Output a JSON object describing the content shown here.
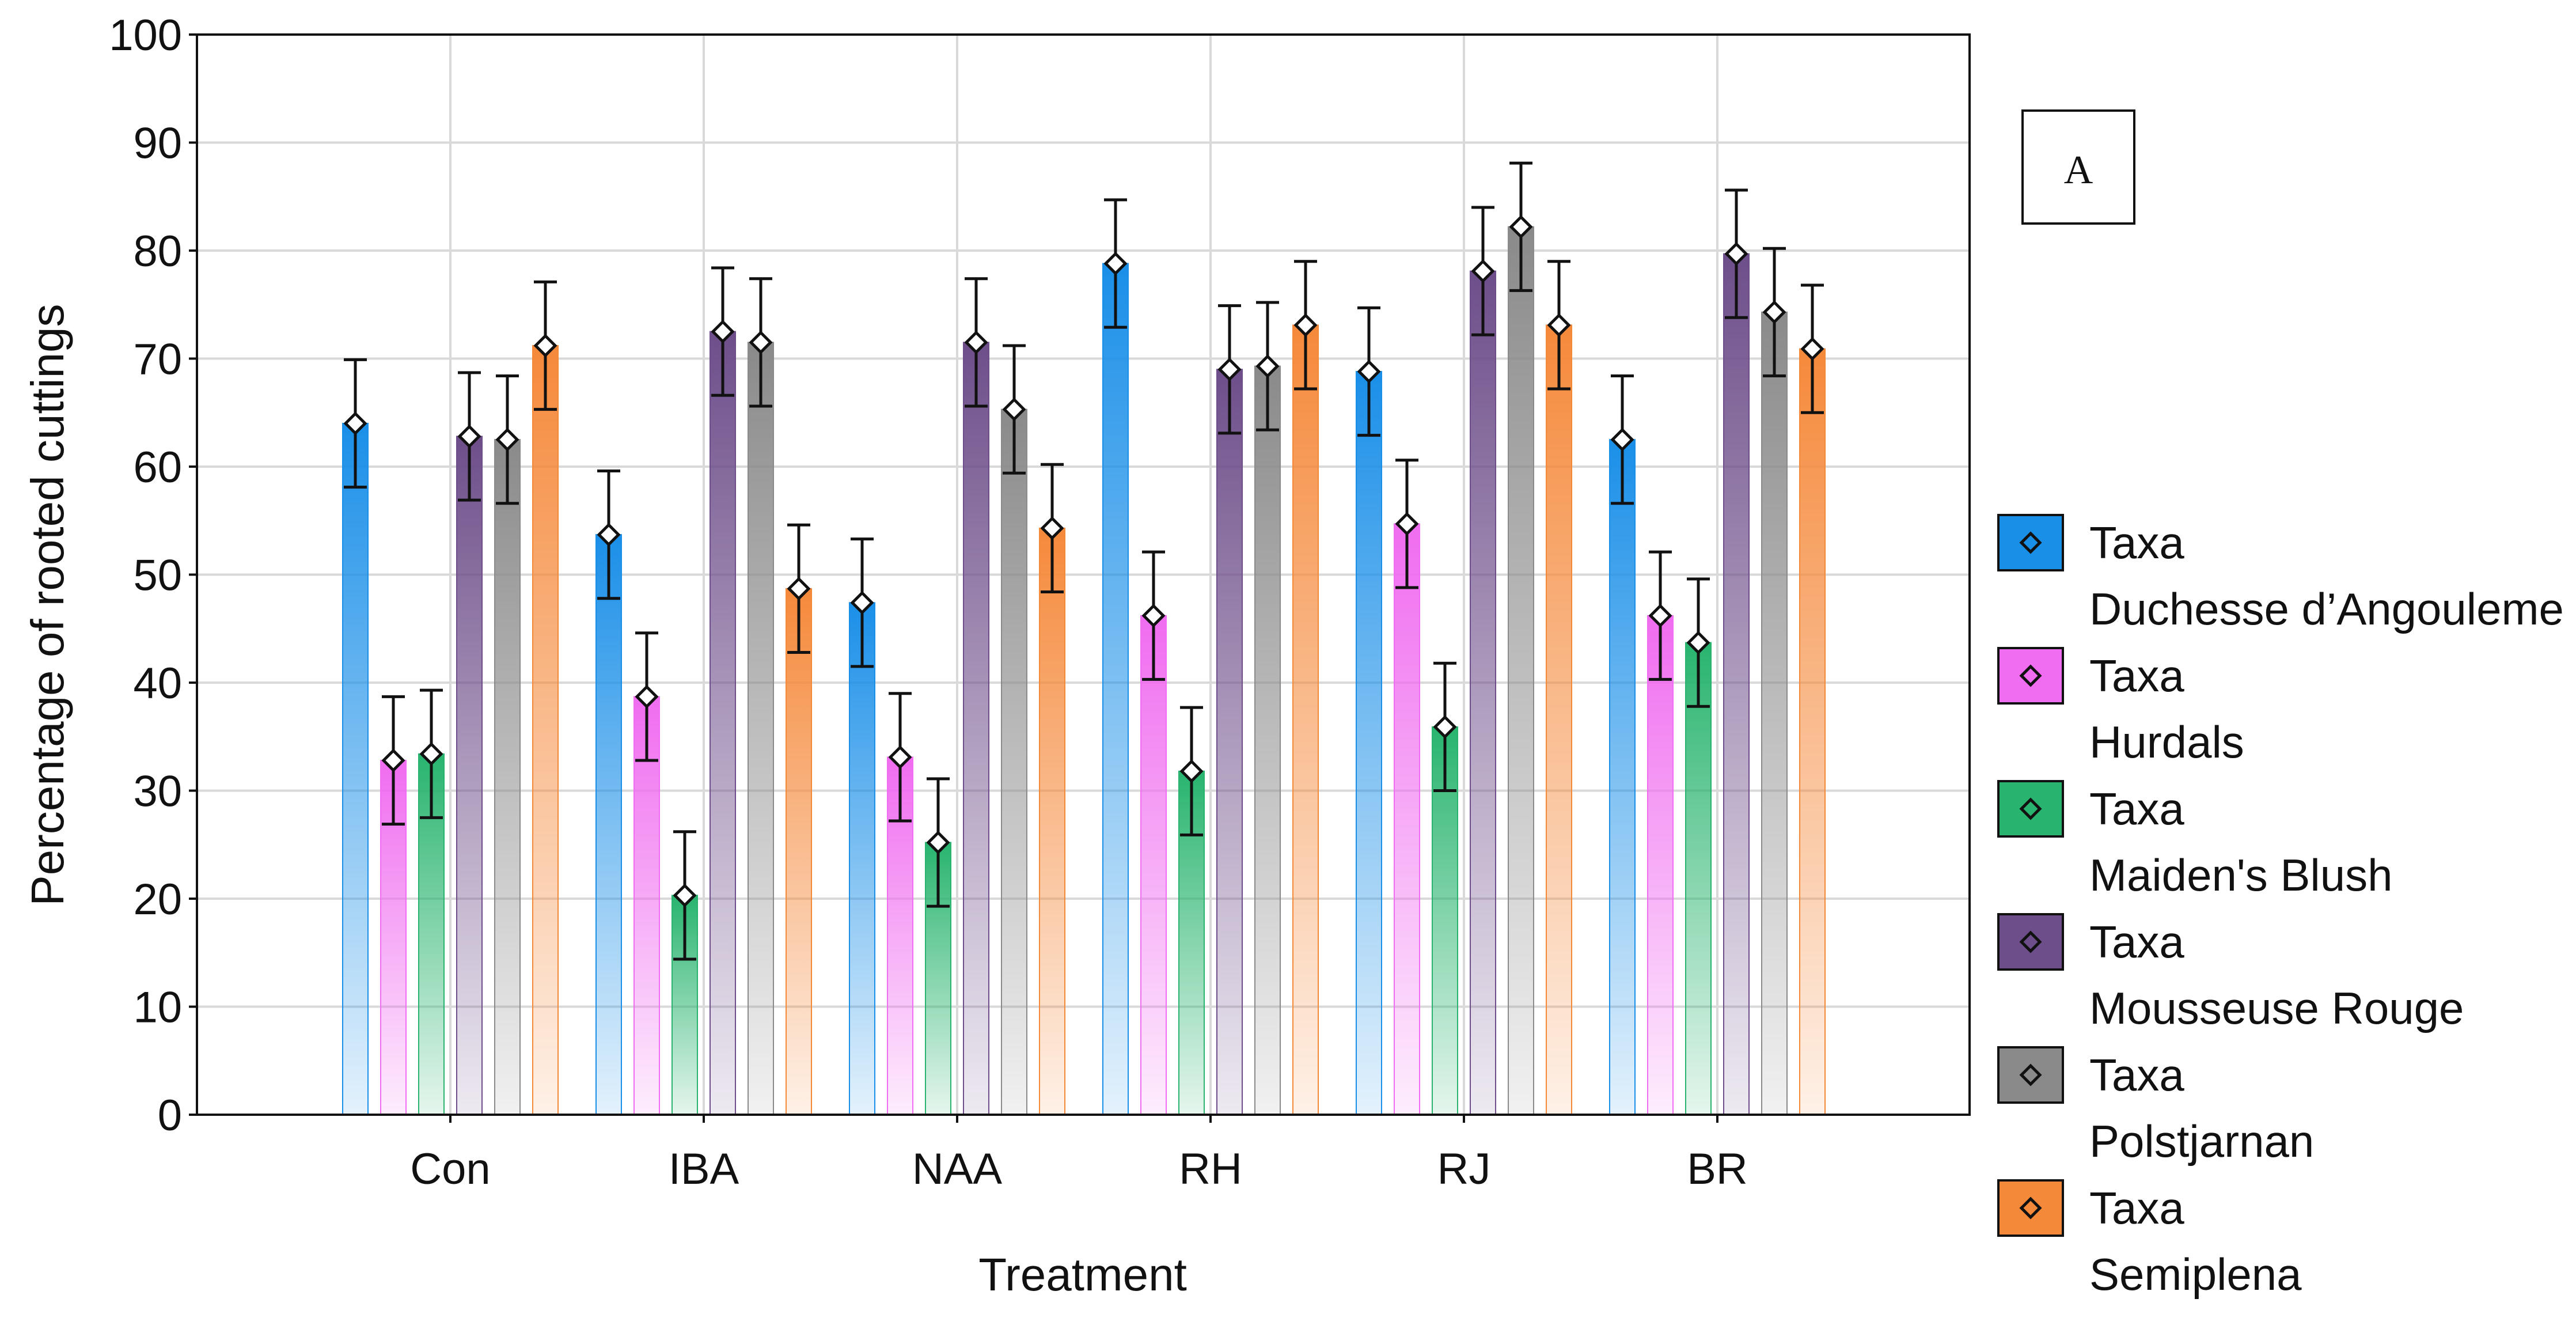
{
  "chart_data": {
    "type": "bar",
    "title": "",
    "panel_label": "A",
    "xlabel": "Treatment",
    "ylabel": "Percentage of rooted cuttings",
    "ylim": [
      0,
      100
    ],
    "yticks": [
      0,
      10,
      20,
      30,
      40,
      50,
      60,
      70,
      80,
      90,
      100
    ],
    "grid": true,
    "legend_position": "right",
    "categories": [
      "Con",
      "IBA",
      "NAA",
      "RH",
      "RJ",
      "BR"
    ],
    "series": [
      {
        "name": "Duchesse d’Angouleme",
        "legend_group": "Taxa",
        "color": "#1a8fe8",
        "values": [
          64,
          53.7,
          47.4,
          78.8,
          68.8,
          62.5
        ],
        "errors": [
          5.9,
          5.9,
          5.9,
          5.9,
          5.9,
          5.9
        ]
      },
      {
        "name": "Hurdals",
        "legend_group": "Taxa",
        "color": "#f06cf0",
        "values": [
          32.8,
          38.7,
          33.1,
          46.2,
          54.7,
          46.2
        ],
        "errors": [
          5.9,
          5.9,
          5.9,
          5.9,
          5.9,
          5.9
        ]
      },
      {
        "name": "Maiden's Blush",
        "legend_group": "Taxa",
        "color": "#28b46e",
        "values": [
          33.4,
          20.3,
          25.2,
          31.8,
          35.9,
          43.7
        ],
        "errors": [
          5.9,
          5.9,
          5.9,
          5.9,
          5.9,
          5.9
        ]
      },
      {
        "name": "Mousseuse Rouge",
        "legend_group": "Taxa",
        "color": "#6e4e8a",
        "values": [
          62.8,
          72.5,
          71.5,
          69,
          78.1,
          79.7
        ],
        "errors": [
          5.9,
          5.9,
          5.9,
          5.9,
          5.9,
          5.9
        ]
      },
      {
        "name": "Polstjarnan",
        "legend_group": "Taxa",
        "color": "#8a8a8a",
        "values": [
          62.5,
          71.5,
          65.3,
          69.3,
          82.2,
          74.3
        ],
        "errors": [
          5.9,
          5.9,
          5.9,
          5.9,
          5.9,
          5.9
        ]
      },
      {
        "name": "Semiplena",
        "legend_group": "Taxa",
        "color": "#f5893a",
        "values": [
          71.2,
          48.7,
          54.3,
          73.1,
          73.1,
          70.9
        ],
        "errors": [
          5.9,
          5.9,
          5.9,
          5.9,
          5.9,
          5.9
        ]
      }
    ]
  }
}
